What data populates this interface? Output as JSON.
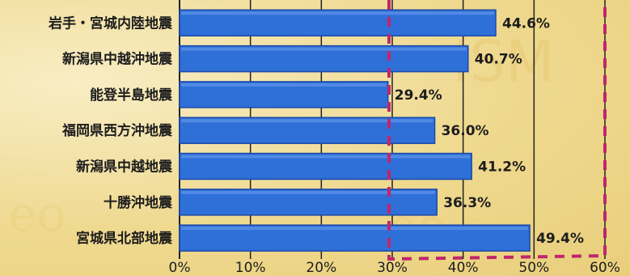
{
  "chart_data": {
    "type": "bar",
    "orientation": "horizontal",
    "categories": [
      "岩手・宮城内陸地震",
      "新潟県中越沖地震",
      "能登半島地震",
      "福岡県西方沖地震",
      "新潟県中越地震",
      "十勝沖地震",
      "宮城県北部地震"
    ],
    "values": [
      44.6,
      40.7,
      29.4,
      36.0,
      41.2,
      36.3,
      49.4
    ],
    "value_labels": [
      "44.6%",
      "40.7%",
      "29.4%",
      "36.0%",
      "41.2%",
      "36.3%",
      "49.4%"
    ],
    "title": "",
    "xlabel": "",
    "ylabel": "",
    "xlim": [
      0,
      60
    ],
    "ticks": [
      "0%",
      "10%",
      "20%",
      "30%",
      "40%",
      "50%",
      "60%"
    ],
    "grid": true,
    "colors": {
      "bar": "#2f6fd8",
      "bar_edge": "#1b4aa8",
      "grid": "#222222",
      "highlight_frame": "#c0266d",
      "text": "#1c1c1c"
    }
  }
}
